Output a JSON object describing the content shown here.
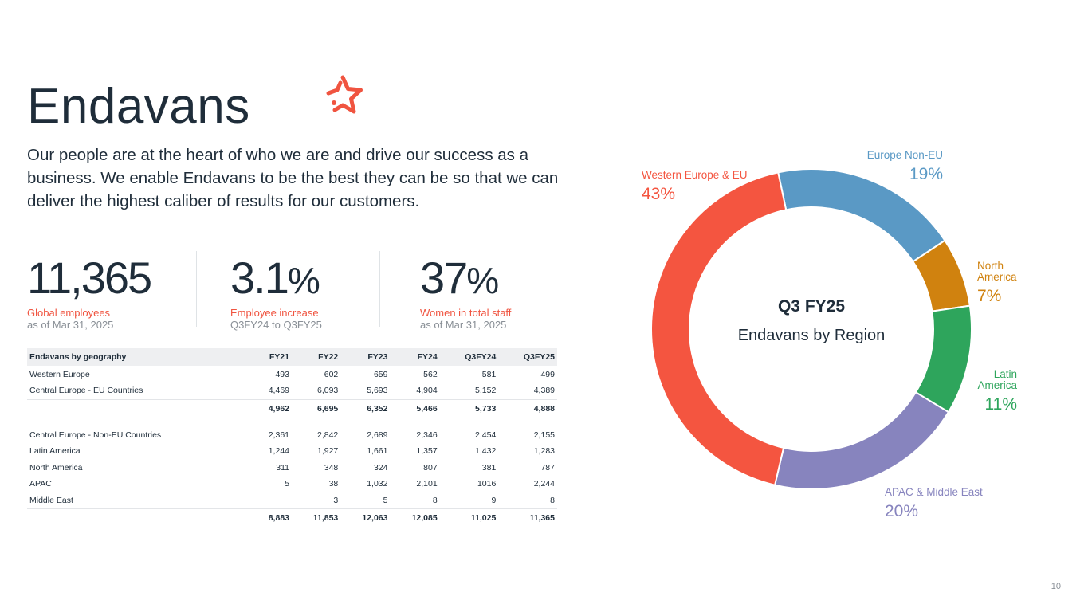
{
  "page": {
    "title": "Endavans",
    "intro": "Our people are at the heart of who we are and drive our success as a business. We enable Endavans to be the best they can be so that we can deliver the highest caliber of results for our customers.",
    "page_number": "10",
    "accent_color": "#f05440"
  },
  "kpis": [
    {
      "value": "11,365",
      "suffix": "",
      "label": "Global employees",
      "sub": "as of Mar 31, 2025"
    },
    {
      "value": "3.1",
      "suffix": "%",
      "label": "Employee increase",
      "sub": "Q3FY24 to Q3FY25"
    },
    {
      "value": "37",
      "suffix": "%",
      "label": "Women in total staff",
      "sub": "as of Mar 31, 2025"
    }
  ],
  "table": {
    "headers": [
      "Endavans by geography",
      "FY21",
      "FY22",
      "FY23",
      "FY24",
      "Q3FY24",
      "Q3FY25"
    ],
    "rows": [
      [
        "Western Europe",
        "493",
        "602",
        "659",
        "562",
        "581",
        "499"
      ],
      [
        "Central Europe - EU Countries",
        "4,469",
        "6,093",
        "5,693",
        "4,904",
        "5,152",
        "4,389"
      ]
    ],
    "subtotal": [
      "",
      "4,962",
      "6,695",
      "6,352",
      "5,466",
      "5,733",
      "4,888"
    ],
    "rows2": [
      [
        "Central Europe - Non-EU Countries",
        "2,361",
        "2,842",
        "2,689",
        "2,346",
        "2,454",
        "2,155"
      ],
      [
        "Latin America",
        "1,244",
        "1,927",
        "1,661",
        "1,357",
        "1,432",
        "1,283"
      ],
      [
        "North America",
        "311",
        "348",
        "324",
        "807",
        "381",
        "787"
      ],
      [
        "APAC",
        "5",
        "38",
        "1,032",
        "2,101",
        "1016",
        "2,244"
      ],
      [
        "Middle East",
        "",
        "3",
        "5",
        "8",
        "9",
        "8"
      ]
    ],
    "total": [
      "",
      "8,883",
      "11,853",
      "12,063",
      "12,085",
      "11,025",
      "11,365"
    ]
  },
  "chart_data": {
    "type": "pie",
    "title": "Q3 FY25",
    "subtitle": "Endavans by Region",
    "categories": [
      "Europe Non-EU",
      "North America",
      "Latin America",
      "APAC & Middle East",
      "Western Europe & EU"
    ],
    "values": [
      19,
      7,
      11,
      20,
      43
    ],
    "labels": [
      "19%",
      "7%",
      "11%",
      "20%",
      "43%"
    ],
    "display_names": [
      [
        "Europe Non-EU"
      ],
      [
        "North",
        "America"
      ],
      [
        "Latin",
        "America"
      ],
      [
        "APAC & Middle East"
      ],
      [
        "Western Europe & EU"
      ]
    ],
    "colors": [
      "#5a99c5",
      "#d0820f",
      "#2ea55c",
      "#8784be",
      "#f45540"
    ]
  }
}
